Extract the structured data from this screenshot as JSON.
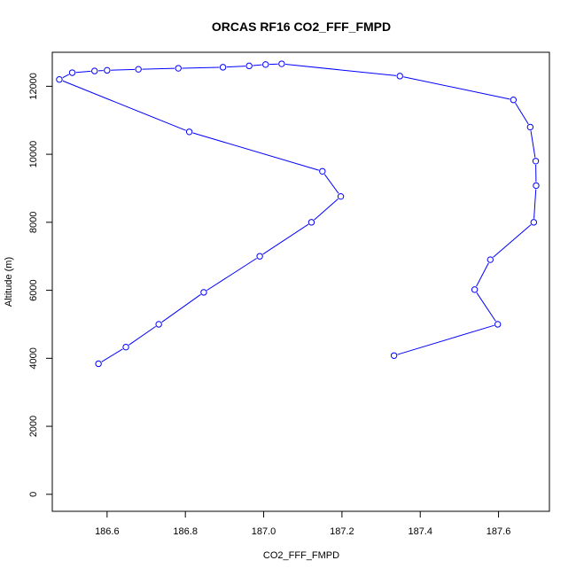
{
  "chart_data": {
    "type": "line",
    "title": "ORCAS RF16 CO2_FFF_FMPD",
    "xlabel": "CO2_FFF_FMPD",
    "ylabel": "Altitude (m)",
    "xlim": [
      186.46,
      187.73
    ],
    "ylim": [
      -500,
      13000
    ],
    "xticks": [
      "186.6",
      "186.8",
      "187.0",
      "187.2",
      "187.4",
      "187.6"
    ],
    "yticks": [
      "0",
      "2000",
      "4000",
      "6000",
      "8000",
      "10000",
      "12000"
    ],
    "grid": false,
    "colors": {
      "series": "#0000ff",
      "axis": "#000000"
    },
    "series": [
      {
        "x": [
          187.333,
          187.598,
          187.539,
          187.579,
          187.69,
          187.696,
          187.695,
          187.681,
          187.638,
          187.348,
          187.046,
          187.005,
          186.963,
          186.896,
          186.782,
          186.68,
          186.6,
          186.568,
          186.511,
          186.478,
          186.81,
          187.15,
          187.197,
          187.122,
          186.99,
          186.847,
          186.732,
          186.648,
          186.578
        ],
        "y": [
          4080,
          5000,
          6020,
          6900,
          8000,
          9080,
          9800,
          10800,
          11600,
          12300,
          12660,
          12640,
          12600,
          12560,
          12530,
          12500,
          12470,
          12450,
          12400,
          12200,
          10660,
          9500,
          8760,
          8000,
          7000,
          5940,
          5000,
          4330,
          3840
        ]
      }
    ]
  }
}
